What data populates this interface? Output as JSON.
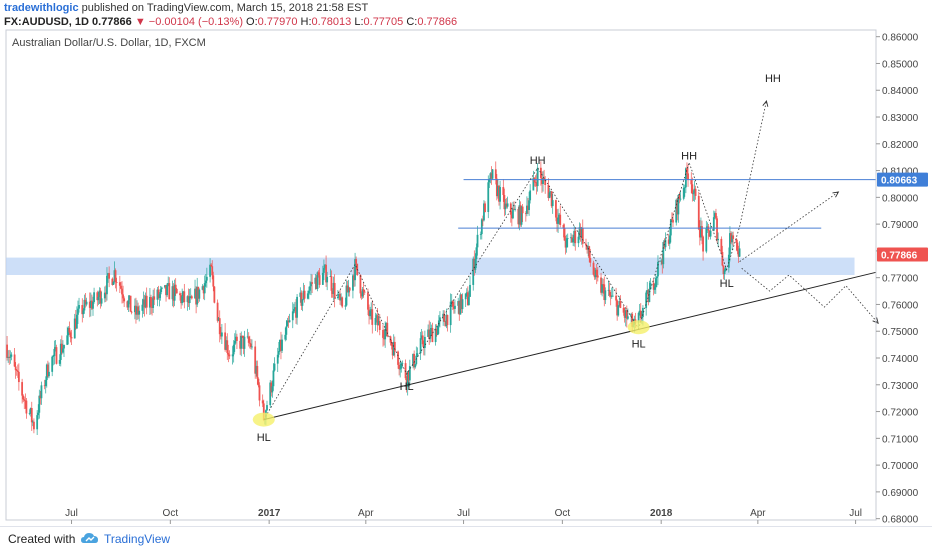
{
  "header": {
    "author": "tradewithlogic",
    "published_text": "published on TradingView.com, March 15, 2018 21:58 EST",
    "symbol": "FX:AUDUSD, 1D",
    "last": "0.77866",
    "change": "−0.00104 (−0.13%)",
    "open_label": "O:",
    "open": "0.77970",
    "high_label": "H:",
    "high": "0.78013",
    "low_label": "L:",
    "low": "0.77705",
    "close_label": "C:",
    "close": "0.77866"
  },
  "footer": {
    "created_with": "Created with",
    "brand": "TradingView"
  },
  "colors": {
    "up": "#26a69a",
    "down": "#ef5350",
    "trendline": "#222222",
    "resistance": "#4a7fd4",
    "zone": "#bcd4f5",
    "highlight": "#f5f06a",
    "price_badge": "#ef5350",
    "level_badge": "#3f7fd8"
  },
  "chart_data": {
    "type": "candlestick",
    "title": "Australian Dollar/U.S. Dollar, 1D, FXCM",
    "y_axis": {
      "range": [
        0.6795,
        0.8625
      ],
      "position": "right",
      "ticks": [
        "0.86000",
        "0.85000",
        "0.84000",
        "0.83000",
        "0.82000",
        "0.81000",
        "0.80000",
        "0.79000",
        "0.78000",
        "0.77000",
        "0.76000",
        "0.75000",
        "0.74000",
        "0.73000",
        "0.72000",
        "0.71000",
        "0.70000",
        "0.69000",
        "0.68000"
      ]
    },
    "x_axis": {
      "range": [
        "2016-05-01",
        "2018-07-20"
      ],
      "ticks": [
        {
          "label": "Jul",
          "date": "2016-07-01",
          "bold": false
        },
        {
          "label": "Oct",
          "date": "2016-10-01",
          "bold": false
        },
        {
          "label": "2017",
          "date": "2017-01-01",
          "bold": true
        },
        {
          "label": "Apr",
          "date": "2017-04-01",
          "bold": false
        },
        {
          "label": "Jul",
          "date": "2017-07-01",
          "bold": false
        },
        {
          "label": "Oct",
          "date": "2017-10-01",
          "bold": false
        },
        {
          "label": "2018",
          "date": "2018-01-01",
          "bold": true
        },
        {
          "label": "Apr",
          "date": "2018-04-01",
          "bold": false
        },
        {
          "label": "Jul",
          "date": "2018-07-01",
          "bold": false
        }
      ]
    },
    "price_path": [
      [
        "2016-05-01",
        0.745
      ],
      [
        "2016-05-15",
        0.728
      ],
      [
        "2016-05-27",
        0.715
      ],
      [
        "2016-06-10",
        0.738
      ],
      [
        "2016-06-24",
        0.745
      ],
      [
        "2016-07-10",
        0.758
      ],
      [
        "2016-07-25",
        0.762
      ],
      [
        "2016-08-10",
        0.772
      ],
      [
        "2016-08-28",
        0.756
      ],
      [
        "2016-09-15",
        0.762
      ],
      [
        "2016-10-01",
        0.765
      ],
      [
        "2016-10-20",
        0.76
      ],
      [
        "2016-11-08",
        0.772
      ],
      [
        "2016-11-14",
        0.755
      ],
      [
        "2016-11-25",
        0.742
      ],
      [
        "2016-12-05",
        0.746
      ],
      [
        "2016-12-15",
        0.745
      ],
      [
        "2016-12-27",
        0.718
      ],
      [
        "2017-01-10",
        0.742
      ],
      [
        "2017-01-25",
        0.758
      ],
      [
        "2017-02-10",
        0.768
      ],
      [
        "2017-02-24",
        0.772
      ],
      [
        "2017-03-10",
        0.758
      ],
      [
        "2017-03-22",
        0.774
      ],
      [
        "2017-04-05",
        0.755
      ],
      [
        "2017-04-20",
        0.75
      ],
      [
        "2017-05-09",
        0.733
      ],
      [
        "2017-05-24",
        0.746
      ],
      [
        "2017-06-08",
        0.752
      ],
      [
        "2017-06-20",
        0.758
      ],
      [
        "2017-07-05",
        0.762
      ],
      [
        "2017-07-15",
        0.786
      ],
      [
        "2017-07-27",
        0.808
      ],
      [
        "2017-08-10",
        0.795
      ],
      [
        "2017-08-25",
        0.793
      ],
      [
        "2017-09-08",
        0.809
      ],
      [
        "2017-09-20",
        0.801
      ],
      [
        "2017-10-05",
        0.782
      ],
      [
        "2017-10-18",
        0.788
      ],
      [
        "2017-11-02",
        0.768
      ],
      [
        "2017-11-20",
        0.76
      ],
      [
        "2017-12-08",
        0.751
      ],
      [
        "2017-12-20",
        0.763
      ],
      [
        "2018-01-05",
        0.782
      ],
      [
        "2018-01-15",
        0.796
      ],
      [
        "2018-01-27",
        0.811
      ],
      [
        "2018-02-09",
        0.782
      ],
      [
        "2018-02-20",
        0.792
      ],
      [
        "2018-03-01",
        0.772
      ],
      [
        "2018-03-08",
        0.788
      ],
      [
        "2018-03-15",
        0.7787
      ]
    ],
    "support_zone": {
      "low": 0.771,
      "high": 0.7775
    },
    "resistance_lines": [
      {
        "value": 0.80663,
        "from": "2017-07-01",
        "badge": "0.80663"
      },
      {
        "value": 0.7885,
        "from": "2017-06-26",
        "to": "2018-05-30",
        "badge": null
      }
    ],
    "trendline": {
      "from": [
        "2016-12-27",
        0.717
      ],
      "to": [
        "2018-07-20",
        0.772
      ]
    },
    "last_price": {
      "value": 0.77866,
      "label": "0.77866"
    },
    "swing_path": [
      [
        "2016-12-27",
        0.717
      ],
      [
        "2017-03-22",
        0.775
      ],
      [
        "2017-05-09",
        0.734
      ],
      [
        "2017-09-08",
        0.811
      ],
      [
        "2017-12-11",
        0.751
      ],
      [
        "2018-01-27",
        0.813
      ],
      [
        "2018-03-03",
        0.773
      ],
      [
        "2018-03-15",
        0.789
      ]
    ],
    "projections": [
      {
        "name": "HH up",
        "points": [
          [
            "2018-03-15",
            0.789
          ],
          [
            "2018-04-09",
            0.836
          ]
        ]
      },
      {
        "name": "middle",
        "points": [
          [
            "2018-03-15",
            0.776
          ],
          [
            "2018-06-15",
            0.802
          ]
        ]
      },
      {
        "name": "down",
        "points": [
          [
            "2018-03-17",
            0.7735
          ],
          [
            "2018-04-12",
            0.765
          ],
          [
            "2018-04-30",
            0.771
          ],
          [
            "2018-06-02",
            0.759
          ],
          [
            "2018-06-22",
            0.767
          ],
          [
            "2018-07-22",
            0.753
          ]
        ]
      }
    ],
    "annotations": [
      {
        "text": "HH",
        "date": "2017-09-08",
        "value": 0.8125
      },
      {
        "text": "HH",
        "date": "2018-01-27",
        "value": 0.8142
      },
      {
        "text": "HH",
        "date": "2018-04-15",
        "value": 0.843
      },
      {
        "text": "HL",
        "date": "2016-12-27",
        "value": 0.709
      },
      {
        "text": "HL",
        "date": "2017-05-09",
        "value": 0.728
      },
      {
        "text": "HL",
        "date": "2017-12-11",
        "value": 0.744
      },
      {
        "text": "HL",
        "date": "2018-03-03",
        "value": 0.7665
      }
    ],
    "highlights": [
      {
        "date": "2016-12-27",
        "value": 0.717
      },
      {
        "date": "2017-12-11",
        "value": 0.7515
      }
    ]
  }
}
